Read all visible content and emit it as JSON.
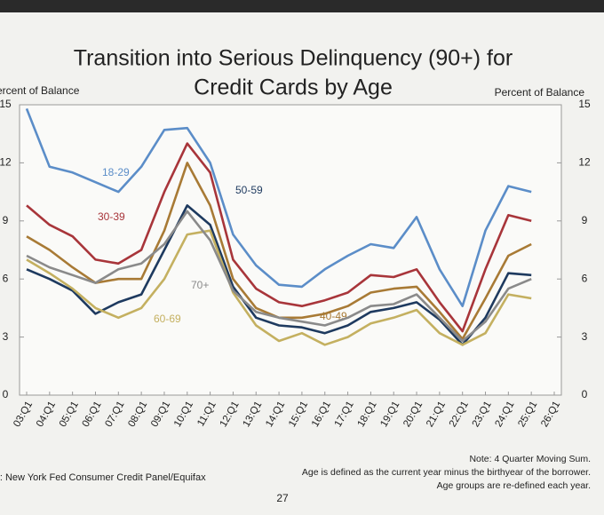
{
  "chart_data": {
    "type": "line",
    "title": [
      "Transition into Serious Delinquency (90+) for",
      "Credit Cards by Age"
    ],
    "ylabel": "Percent of Balance",
    "y2label": "Percent of Balance",
    "categories": [
      "03:Q1",
      "04:Q1",
      "05:Q1",
      "06:Q1",
      "07:Q1",
      "08:Q1",
      "09:Q1",
      "10:Q1",
      "11:Q1",
      "12:Q1",
      "13:Q1",
      "14:Q1",
      "15:Q1",
      "16:Q1",
      "17:Q1",
      "18:Q1",
      "19:Q1",
      "20:Q1",
      "21:Q1",
      "22:Q1",
      "23:Q1",
      "24:Q1",
      "25:Q1",
      "26:Q1"
    ],
    "series": [
      {
        "name": "18-29",
        "color": "#5b8dc8",
        "values": [
          14.8,
          11.8,
          11.5,
          11.0,
          10.5,
          11.8,
          13.7,
          13.8,
          12.0,
          8.3,
          6.7,
          5.7,
          5.6,
          6.5,
          7.2,
          7.8,
          7.6,
          9.2,
          6.5,
          4.6,
          8.5,
          10.8,
          10.5,
          null
        ]
      },
      {
        "name": "30-39",
        "color": "#a8353a",
        "values": [
          9.8,
          8.8,
          8.2,
          7.0,
          6.8,
          7.5,
          10.5,
          13.0,
          11.5,
          7.0,
          5.5,
          4.8,
          4.6,
          4.9,
          5.3,
          6.2,
          6.1,
          6.5,
          4.8,
          3.3,
          6.5,
          9.3,
          9.0,
          null
        ]
      },
      {
        "name": "40-49",
        "color": "#a87a35",
        "values": [
          8.2,
          7.5,
          6.6,
          5.8,
          6.0,
          6.0,
          8.5,
          12.0,
          9.8,
          6.0,
          4.5,
          4.0,
          4.0,
          4.2,
          4.6,
          5.3,
          5.5,
          5.6,
          4.3,
          2.9,
          5.0,
          7.2,
          7.8,
          null
        ]
      },
      {
        "name": "50-59",
        "color": "#1e3a5f",
        "values": [
          6.5,
          6.0,
          5.4,
          4.2,
          4.8,
          5.2,
          7.5,
          9.8,
          8.8,
          5.6,
          4.0,
          3.6,
          3.5,
          3.2,
          3.6,
          4.3,
          4.5,
          4.8,
          3.9,
          2.6,
          4.0,
          6.3,
          6.2,
          null
        ]
      },
      {
        "name": "60-69",
        "color": "#c4b060",
        "values": [
          7.0,
          6.3,
          5.5,
          4.5,
          4.0,
          4.5,
          6.0,
          8.3,
          8.5,
          5.3,
          3.6,
          2.8,
          3.2,
          2.6,
          3.0,
          3.7,
          4.0,
          4.4,
          3.2,
          2.6,
          3.2,
          5.2,
          5.0,
          null
        ]
      },
      {
        "name": "70+",
        "color": "#8a8a8a",
        "values": [
          7.2,
          6.6,
          6.2,
          5.8,
          6.5,
          6.8,
          7.8,
          9.5,
          8.0,
          5.4,
          4.3,
          4.0,
          3.8,
          3.6,
          4.0,
          4.6,
          4.7,
          5.2,
          4.0,
          2.8,
          3.8,
          5.5,
          6.0,
          null
        ]
      }
    ],
    "ylim": [
      0,
      15
    ],
    "yticks": [
      0,
      3,
      6,
      9,
      12,
      15
    ],
    "y2lim": [
      0,
      15
    ],
    "y2ticks": [
      0,
      3,
      6,
      9,
      12,
      15
    ],
    "grid": false,
    "source": "Source: New York Fed Consumer Credit Panel/Equifax",
    "notes": [
      "Note: 4 Quarter Moving Sum.",
      "Age is defined as the current year minus the birthyear of the borrower.",
      "Age groups are re-defined each year."
    ],
    "page_number": "27"
  }
}
